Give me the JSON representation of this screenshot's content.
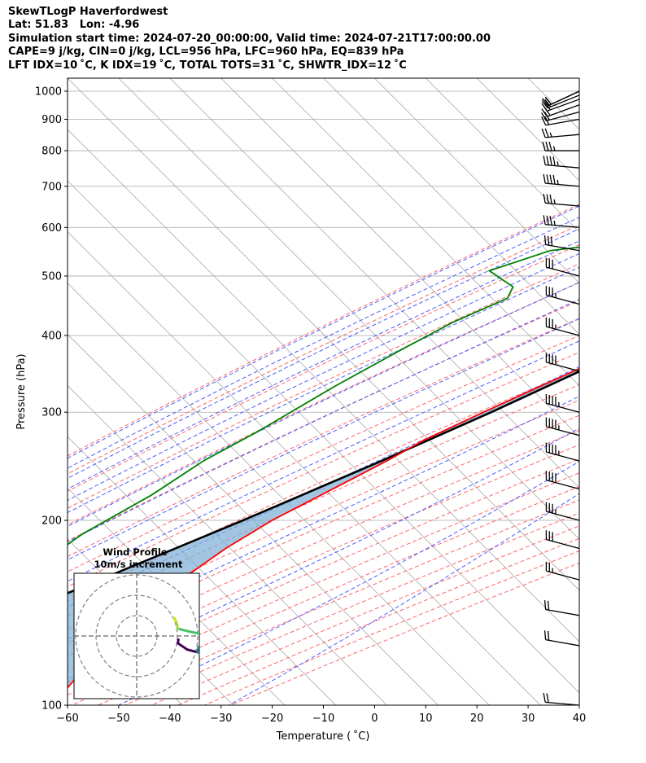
{
  "header": {
    "line1": "SkewTLogP Haverfordwest",
    "line2": "Lat: 51.83   Lon: -4.96",
    "line3": "Simulation start time: 2024-07-20_00:00:00, Valid time: 2024-07-21T17:00:00.00",
    "line4": "CAPE=9 j/kg, CIN=0 j/kg, LCL=956 hPa, LFC=960 hPa, EQ=839 hPa",
    "line5": "LFT IDX=10 ˚C, K IDX=19 ˚C, TOTAL TOTS=31 ˚C, SHWTR_IDX=12 ˚C"
  },
  "inset": {
    "title": "Wind Profile",
    "subtitle": "10m/s increment"
  },
  "colors": {
    "temperature": "#ff0000",
    "dewpoint": "#008000",
    "parcel": "#000000",
    "cape_fill": "#7eb0d5",
    "dry_adiabat": "#ff6666",
    "moist_adiabat": "#4a5cff",
    "mixing_ratio": "#8b3fcf",
    "isotherm": "#a9a9a9"
  },
  "chart_data": {
    "type": "line",
    "title": "",
    "xlabel": "Temperature ( ˚C)",
    "ylabel": "Pressure (hPa)",
    "xlim": [
      -60,
      40
    ],
    "ylim": [
      1050,
      100
    ],
    "yscale": "log",
    "x_ticks": [
      "−60",
      "−50",
      "−40",
      "−30",
      "−20",
      "−10",
      "0",
      "10",
      "20",
      "30",
      "40"
    ],
    "y_ticks": [
      "100",
      "200",
      "300",
      "400",
      "500",
      "600",
      "700",
      "800",
      "900",
      "1000"
    ],
    "grid": true,
    "skew": "45 degrees",
    "series": [
      {
        "name": "Temperature",
        "pressure": [
          1000,
          985,
          950,
          900,
          850,
          800,
          750,
          700,
          650,
          600,
          550,
          500,
          450,
          400,
          350,
          300,
          270,
          250,
          230,
          200,
          180,
          160,
          145,
          130,
          120,
          110,
          100
        ],
        "temperature": [
          16.2,
          14.8,
          13.3,
          12.4,
          12.0,
          11.3,
          11.4,
          11.2,
          8.7,
          5.2,
          1.2,
          -4.1,
          -10.8,
          -18.0,
          -26.3,
          -35.9,
          -42.1,
          -45.3,
          -49.3,
          -56.1,
          -59.7,
          -62.3,
          -63.4,
          -64.0,
          -64.1,
          -63.6,
          -63.0
        ]
      },
      {
        "name": "Dewpoint",
        "pressure": [
          1000,
          985,
          960,
          930,
          900,
          860,
          820,
          790,
          760,
          730,
          700,
          670,
          640,
          610,
          590,
          550,
          510,
          480,
          460,
          420,
          380,
          330,
          280,
          250,
          220,
          190,
          170,
          160,
          145,
          130,
          115,
          100
        ],
        "temperature": [
          12.5,
          12.6,
          12.9,
          11.4,
          9.3,
          7.2,
          6.3,
          7.6,
          10.4,
          11.6,
          11.3,
          9.5,
          5.2,
          -3.7,
          -26.2,
          -54.4,
          -62.4,
          -54.6,
          -53.5,
          -59.5,
          -64.1,
          -70.1,
          -76.1,
          -81.1,
          -84.6,
          -90.5,
          -92.9,
          -87.7,
          -89.0,
          -88.8,
          -89.0,
          -89.0
        ]
      },
      {
        "name": "Parcel",
        "pressure": [
          1000,
          980,
          956,
          900,
          850,
          800,
          750,
          700,
          650,
          600,
          550,
          500,
          450,
          400,
          350,
          300,
          250,
          200,
          150,
          100
        ],
        "temperature": [
          16.2,
          13.6,
          12.6,
          11.0,
          9.3,
          7.7,
          5.9,
          4.0,
          1.9,
          -0.6,
          -3.6,
          -7.3,
          -12.0,
          -17.8,
          -25.1,
          -34.4,
          -46.3,
          -61.8,
          -82.9,
          -113.7
        ]
      }
    ],
    "cape_fill": "between parcel and temperature",
    "background_lines": [
      "isotherms",
      "dry adiabats",
      "moist adiabats",
      "mixing ratio"
    ],
    "wind_barbs": {
      "pressure": [
        1000,
        1000,
        985,
        970,
        950,
        925,
        900,
        850,
        800,
        750,
        700,
        650,
        600,
        550,
        500,
        450,
        400,
        350,
        300,
        275,
        250,
        225,
        200,
        180,
        160,
        140,
        125,
        100
      ],
      "speed_kt": [
        20,
        20,
        20,
        20,
        20,
        20,
        20,
        25,
        35,
        45,
        45,
        35,
        35,
        30,
        30,
        35,
        35,
        40,
        45,
        45,
        45,
        40,
        35,
        30,
        25,
        20,
        20,
        20
      ],
      "direction_deg": [
        245,
        245,
        248,
        250,
        250,
        255,
        260,
        265,
        270,
        275,
        275,
        275,
        275,
        280,
        285,
        285,
        285,
        285,
        285,
        285,
        285,
        285,
        285,
        285,
        285,
        280,
        280,
        275
      ]
    },
    "wind_profile_inset": {
      "title": "Wind Profile",
      "subtitle": "10m/s increment",
      "rings_ms": [
        10,
        20,
        30
      ]
    }
  }
}
